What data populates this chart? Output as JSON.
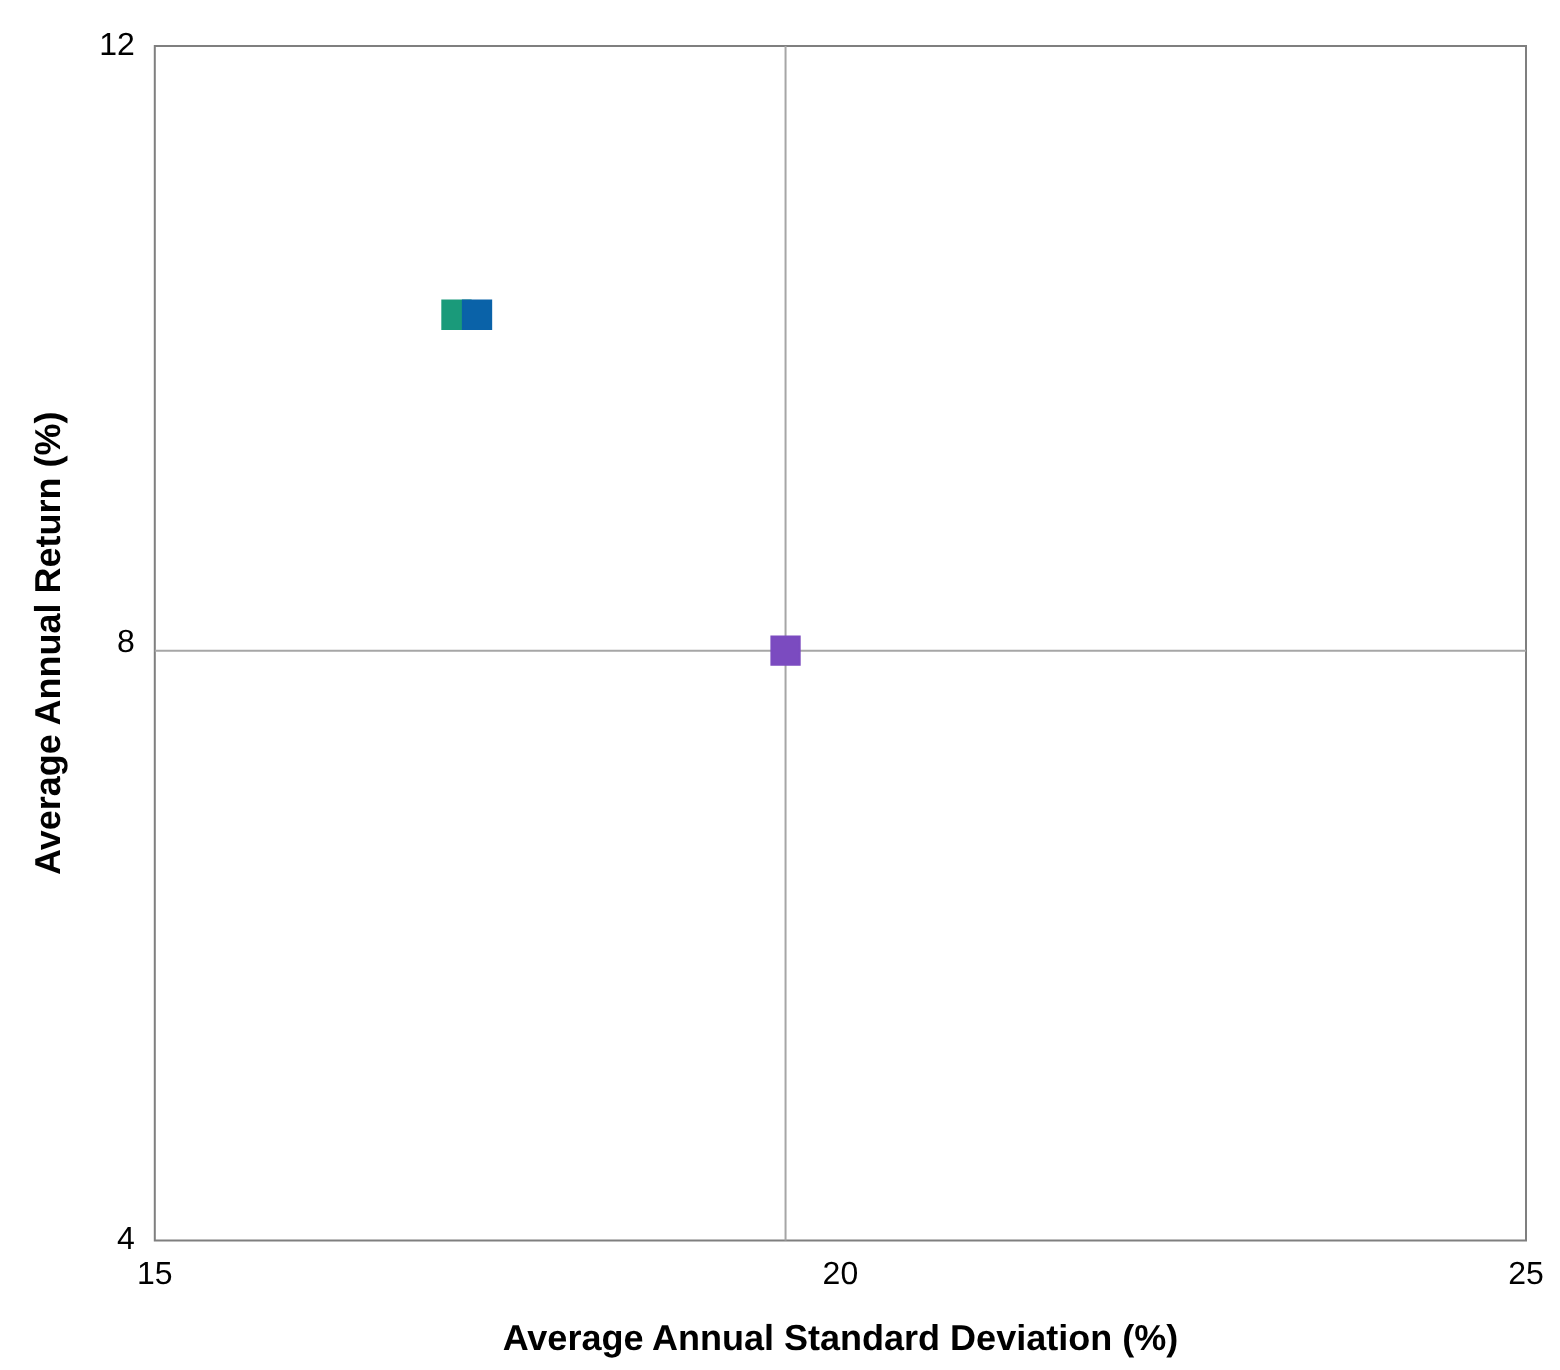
{
  "chart_data": {
    "type": "scatter",
    "xlabel": "Average Annual Standard Deviation (%)",
    "ylabel": "Average Annual Return (%)",
    "series": [
      {
        "x": [
          17.2,
          17.35,
          19.6
        ],
        "values": [
          10.2,
          10.2,
          7.95
        ],
        "colors": [
          "#1a9a7a",
          "#0a62a8",
          "#7b4bc0"
        ]
      }
    ],
    "xlim": [
      15,
      25
    ],
    "xticks": [
      15,
      20,
      25
    ],
    "ylim": [
      4,
      12
    ],
    "yticks": [
      4,
      8,
      12
    ],
    "ref_lines": [
      {
        "axis": "x",
        "value": 19.6,
        "color": "#a6a6a6"
      },
      {
        "axis": "y",
        "value": 7.95,
        "color": "#a6a6a6"
      }
    ],
    "marker": "square",
    "grid": false,
    "legend": false
  }
}
